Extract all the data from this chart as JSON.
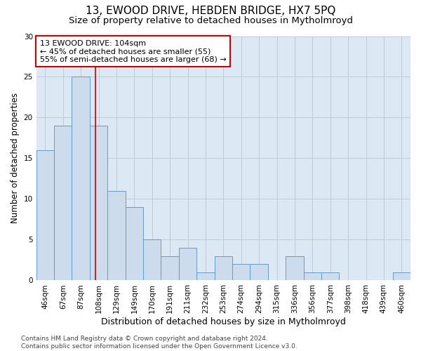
{
  "title1": "13, EWOOD DRIVE, HEBDEN BRIDGE, HX7 5PQ",
  "title2": "Size of property relative to detached houses in Mytholmroyd",
  "xlabel": "Distribution of detached houses by size in Mytholmroyd",
  "ylabel": "Number of detached properties",
  "categories": [
    "46sqm",
    "67sqm",
    "87sqm",
    "108sqm",
    "129sqm",
    "149sqm",
    "170sqm",
    "191sqm",
    "211sqm",
    "232sqm",
    "253sqm",
    "274sqm",
    "294sqm",
    "315sqm",
    "336sqm",
    "356sqm",
    "377sqm",
    "398sqm",
    "418sqm",
    "439sqm",
    "460sqm"
  ],
  "values": [
    16,
    19,
    25,
    19,
    11,
    9,
    5,
    3,
    4,
    1,
    3,
    2,
    2,
    0,
    3,
    1,
    1,
    0,
    0,
    0,
    1
  ],
  "bar_color": "#ccdcec",
  "bar_edge_color": "#6699cc",
  "annotation_box_text": "13 EWOOD DRIVE: 104sqm\n← 45% of detached houses are smaller (55)\n55% of semi-detached houses are larger (68) →",
  "annotation_box_color": "white",
  "annotation_box_edge_color": "#cc0000",
  "vline_color": "#cc0000",
  "ylim": [
    0,
    30
  ],
  "yticks": [
    0,
    5,
    10,
    15,
    20,
    25,
    30
  ],
  "grid_color": "#bbccdd",
  "bg_color": "#dce8f4",
  "footer_text": "Contains HM Land Registry data © Crown copyright and database right 2024.\nContains public sector information licensed under the Open Government Licence v3.0.",
  "title1_fontsize": 11,
  "title2_fontsize": 9.5,
  "xlabel_fontsize": 9,
  "ylabel_fontsize": 8.5,
  "tick_fontsize": 7.5,
  "annotation_fontsize": 8,
  "footer_fontsize": 6.5
}
